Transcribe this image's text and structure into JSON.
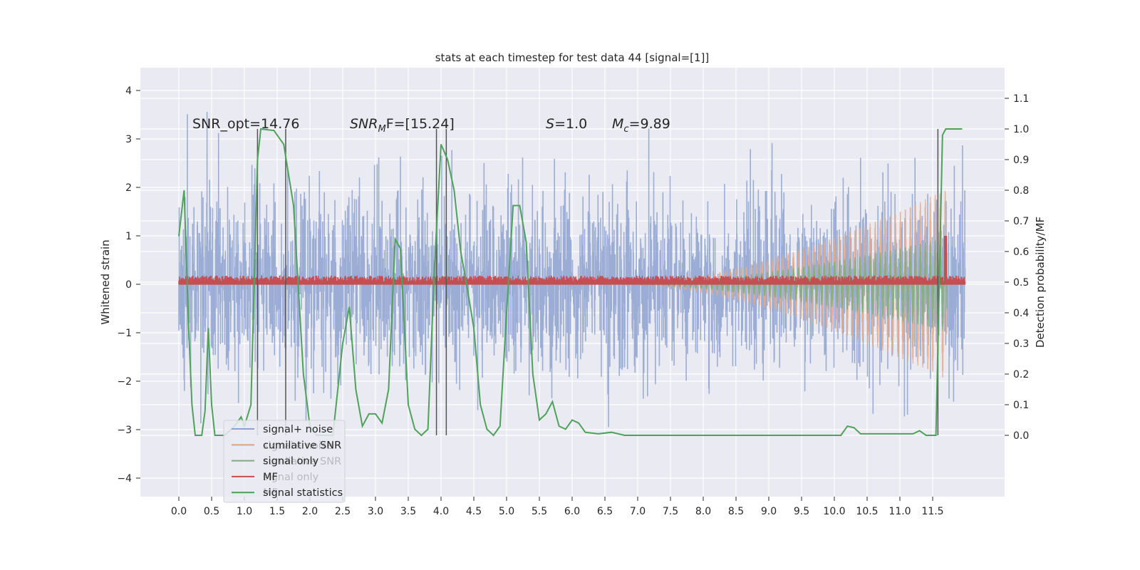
{
  "chart_data": {
    "type": "line",
    "title": "stats at each timestep for test data 44 [signal=[1]]",
    "xlabel": "",
    "ylabel": "Whitened strain",
    "ylabel_right": "Detection probability/MF",
    "xlim": [
      -0.6,
      12.6
    ],
    "ylim": [
      -4.45,
      4.45
    ],
    "ylim_right": [
      -0.2,
      1.2
    ],
    "x_ticks": [
      "0.0",
      "0.5",
      "1.0",
      "1.5",
      "2.0",
      "2.5",
      "3.0",
      "3.5",
      "4.0",
      "4.5",
      "5.0",
      "5.5",
      "6.0",
      "6.5",
      "7.0",
      "7.5",
      "8.0",
      "8.5",
      "9.0",
      "9.5",
      "10.0",
      "10.5",
      "11.0",
      "11.5"
    ],
    "y_ticks": [
      "4",
      "3",
      "2",
      "1",
      "0",
      "−1",
      "−2",
      "−3",
      "−4"
    ],
    "y_ticks_right": [
      "1.1",
      "1.0",
      "0.9",
      "0.8",
      "0.7",
      "0.6",
      "0.5",
      "0.4",
      "0.3",
      "0.2",
      "0.1",
      "0.0"
    ],
    "grid": true,
    "annotations": {
      "snr_opt": "SNR_opt=14.76",
      "snr_mf_base": "SNR",
      "snr_mf_sub": "M",
      "snr_mf_rest": "F=[15.24]",
      "s_sym": "S",
      "s_val": "=1.0",
      "mc_sym": "M",
      "mc_sub": "c",
      "mc_val": "=9.89"
    },
    "legend": {
      "placement": "lower-left",
      "entries": [
        "signal+ noise",
        "cumilative SNR",
        "signal only",
        "MF",
        "signal statistics"
      ],
      "ghost_entries": [
        "signal+ noise",
        "cumilative SNR",
        "signal only",
        "MF"
      ]
    },
    "colors": {
      "signal_noise": "#8da2cf",
      "cumulative_snr": "#e3a989",
      "signal_only": "#7fae7f",
      "mf": "#c44e52",
      "signal_statistics": "#4ea25a",
      "markers": "#555555",
      "background": "#eaeaf2"
    },
    "series": [
      {
        "name": "signal statistics",
        "axis": "right",
        "x": [
          0.0,
          0.08,
          0.15,
          0.2,
          0.25,
          0.35,
          0.4,
          0.45,
          0.5,
          0.55,
          0.7,
          0.85,
          0.95,
          1.0,
          1.1,
          1.2,
          1.25,
          1.45,
          1.6,
          1.75,
          1.9,
          2.0,
          2.1,
          2.35,
          2.5,
          2.6,
          2.7,
          2.8,
          2.9,
          3.0,
          3.1,
          3.2,
          3.3,
          3.38,
          3.5,
          3.6,
          3.7,
          3.8,
          3.9,
          4.0,
          4.1,
          4.2,
          4.3,
          4.4,
          4.5,
          4.6,
          4.7,
          4.8,
          4.9,
          5.0,
          5.1,
          5.2,
          5.3,
          5.4,
          5.5,
          5.6,
          5.7,
          5.8,
          5.9,
          6.0,
          6.1,
          6.2,
          6.4,
          6.6,
          6.8,
          7.5,
          10.1,
          10.2,
          10.3,
          10.4,
          11.2,
          11.3,
          11.4,
          11.55,
          11.65,
          11.7,
          11.95
        ],
        "y": [
          0.65,
          0.8,
          0.35,
          0.1,
          0.0,
          0.0,
          0.08,
          0.35,
          0.1,
          0.0,
          0.0,
          0.03,
          0.06,
          0.03,
          0.1,
          0.9,
          1.0,
          0.995,
          0.95,
          0.75,
          0.2,
          0.03,
          0.0,
          0.0,
          0.3,
          0.42,
          0.15,
          0.03,
          0.07,
          0.07,
          0.04,
          0.15,
          0.64,
          0.61,
          0.1,
          0.02,
          0.0,
          0.02,
          0.55,
          0.95,
          0.9,
          0.8,
          0.6,
          0.48,
          0.35,
          0.1,
          0.02,
          0.0,
          0.03,
          0.4,
          0.75,
          0.75,
          0.63,
          0.2,
          0.05,
          0.07,
          0.11,
          0.03,
          0.02,
          0.05,
          0.04,
          0.01,
          0.005,
          0.01,
          0.0,
          0.0,
          0.0,
          0.03,
          0.025,
          0.005,
          0.005,
          0.015,
          0.0,
          0.0,
          0.98,
          1.0,
          1.0
        ]
      },
      {
        "name": "detection markers",
        "axis": "right",
        "x": [
          1.2,
          1.63,
          3.93,
          4.08,
          11.58
        ],
        "y_range": [
          0.0,
          1.0
        ]
      },
      {
        "name": "signal+ noise",
        "axis": "left",
        "x_range": [
          0.0,
          12.0
        ],
        "approx_range": [
          -3.9,
          4.1
        ]
      },
      {
        "name": "cumilative SNR",
        "axis": "left",
        "chirp_start": 7.0,
        "chirp_end": 11.72,
        "peak_amplitude": 1.95
      },
      {
        "name": "signal only",
        "axis": "left",
        "chirp_start": 7.0,
        "chirp_end": 11.72,
        "peak_amplitude": 0.95
      },
      {
        "name": "MF",
        "axis": "left",
        "typical": 0.1,
        "peak": 1.0,
        "peak_x": 11.7
      }
    ]
  }
}
